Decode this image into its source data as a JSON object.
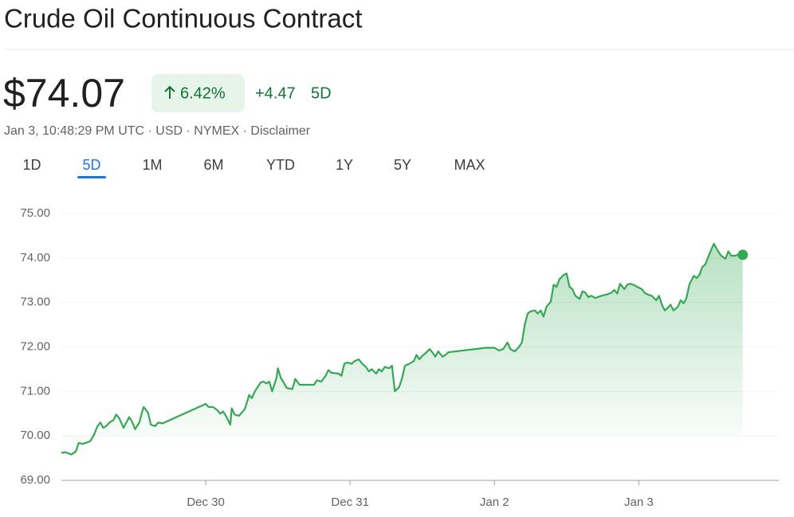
{
  "header": {
    "title": "Crude Oil Continuous Contract",
    "price": "$74.07",
    "change_percent": "6.42%",
    "change": "+4.47",
    "period": "5D",
    "info": "Jan 3, 10:48:29 PM UTC · USD · NYMEX · Disclaimer"
  },
  "tabs": {
    "items": [
      "1D",
      "5D",
      "1M",
      "6M",
      "YTD",
      "1Y",
      "5Y",
      "MAX"
    ],
    "selected": 1
  },
  "chart_data": {
    "type": "line",
    "color": "#34a853",
    "grid": true,
    "xlim": [
      0,
      4.97
    ],
    "ylim": [
      69,
      75
    ],
    "xticks": [
      {
        "value": 1,
        "label": "Dec 30"
      },
      {
        "value": 2,
        "label": "Dec 31"
      },
      {
        "value": 3,
        "label": "Jan 2"
      },
      {
        "value": 4,
        "label": "Jan 3"
      }
    ],
    "yticks": [
      {
        "value": 69,
        "label": "69.00"
      },
      {
        "value": 70,
        "label": "70.00"
      },
      {
        "value": 71,
        "label": "71.00"
      },
      {
        "value": 72,
        "label": "72.00"
      },
      {
        "value": 73,
        "label": "73.00"
      },
      {
        "value": 74,
        "label": "74.00"
      },
      {
        "value": 75,
        "label": "75.00"
      }
    ],
    "x": [
      0.0,
      0.03,
      0.07,
      0.1,
      0.12,
      0.15,
      0.2,
      0.23,
      0.25,
      0.27,
      0.29,
      0.31,
      0.34,
      0.36,
      0.38,
      0.4,
      0.43,
      0.45,
      0.47,
      0.49,
      0.51,
      0.54,
      0.56,
      0.57,
      0.6,
      0.62,
      0.65,
      0.67,
      0.7,
      1.0,
      1.02,
      1.05,
      1.08,
      1.1,
      1.12,
      1.14,
      1.17,
      1.18,
      1.2,
      1.23,
      1.27,
      1.29,
      1.3,
      1.32,
      1.34,
      1.38,
      1.4,
      1.42,
      1.44,
      1.46,
      1.49,
      1.5,
      1.52,
      1.54,
      1.56,
      1.6,
      1.62,
      1.65,
      1.67,
      1.72,
      1.75,
      1.77,
      1.8,
      1.83,
      1.85,
      1.87,
      1.92,
      1.94,
      1.96,
      1.98,
      2.01,
      2.03,
      2.06,
      2.09,
      2.11,
      2.13,
      2.15,
      2.18,
      2.2,
      2.22,
      2.24,
      2.27,
      2.29,
      2.31,
      2.34,
      2.36,
      2.38,
      2.41,
      2.44,
      2.46,
      2.48,
      2.5,
      2.52,
      2.55,
      2.57,
      2.59,
      2.61,
      2.64,
      2.66,
      2.68,
      2.94,
      3.0,
      3.03,
      3.06,
      3.09,
      3.11,
      3.14,
      3.17,
      3.19,
      3.21,
      3.23,
      3.25,
      3.28,
      3.3,
      3.32,
      3.34,
      3.36,
      3.39,
      3.41,
      3.43,
      3.45,
      3.48,
      3.5,
      3.52,
      3.54,
      3.56,
      3.59,
      3.61,
      3.63,
      3.65,
      3.67,
      3.7,
      3.74,
      3.78,
      3.81,
      3.83,
      3.85,
      3.87,
      3.9,
      3.92,
      3.94,
      3.96,
      3.99,
      4.02,
      4.04,
      4.06,
      4.09,
      4.12,
      4.14,
      4.16,
      4.18,
      4.2,
      4.22,
      4.24,
      4.27,
      4.29,
      4.31,
      4.33,
      4.35,
      4.38,
      4.4,
      4.42,
      4.44,
      4.46,
      4.49,
      4.51,
      4.52,
      4.55,
      4.57,
      4.6,
      4.62,
      4.64,
      4.67,
      4.69,
      4.72
    ],
    "values": [
      69.62,
      69.63,
      69.58,
      69.65,
      69.84,
      69.82,
      69.88,
      70.05,
      70.22,
      70.3,
      70.18,
      70.22,
      70.32,
      70.35,
      70.48,
      70.4,
      70.18,
      70.3,
      70.42,
      70.32,
      70.15,
      70.3,
      70.55,
      70.65,
      70.52,
      70.25,
      70.22,
      70.3,
      70.28,
      70.72,
      70.65,
      70.65,
      70.58,
      70.5,
      70.55,
      70.45,
      70.25,
      70.62,
      70.48,
      70.45,
      70.6,
      70.8,
      70.92,
      70.85,
      71.0,
      71.2,
      71.22,
      71.18,
      71.22,
      71.0,
      71.3,
      71.52,
      71.3,
      71.2,
      71.08,
      71.05,
      71.28,
      71.15,
      71.15,
      71.15,
      71.15,
      71.25,
      71.22,
      71.35,
      71.48,
      71.42,
      71.4,
      71.35,
      71.62,
      71.65,
      71.62,
      71.68,
      71.72,
      71.6,
      71.55,
      71.45,
      71.5,
      71.4,
      71.5,
      71.45,
      71.55,
      71.52,
      71.58,
      71.0,
      71.1,
      71.3,
      71.58,
      71.62,
      71.68,
      71.82,
      71.72,
      71.8,
      71.85,
      71.95,
      71.88,
      71.78,
      71.9,
      71.78,
      71.82,
      71.88,
      71.98,
      71.98,
      71.92,
      71.95,
      72.1,
      71.95,
      71.9,
      72.0,
      72.1,
      72.5,
      72.75,
      72.8,
      72.82,
      72.75,
      72.82,
      72.68,
      72.9,
      73.02,
      73.4,
      73.35,
      73.52,
      73.62,
      73.65,
      73.35,
      73.3,
      73.15,
      73.08,
      73.25,
      73.22,
      73.12,
      73.15,
      73.1,
      73.15,
      73.18,
      73.22,
      73.28,
      73.2,
      73.42,
      73.3,
      73.4,
      73.42,
      73.4,
      73.35,
      73.3,
      73.22,
      73.18,
      73.15,
      73.05,
      73.15,
      72.95,
      72.82,
      72.88,
      72.95,
      72.82,
      72.9,
      73.05,
      72.98,
      73.1,
      73.4,
      73.6,
      73.55,
      73.62,
      73.8,
      73.85,
      74.1,
      74.25,
      74.32,
      74.15,
      74.05,
      73.98,
      74.15,
      74.05,
      74.05,
      74.08,
      74.07
    ]
  }
}
